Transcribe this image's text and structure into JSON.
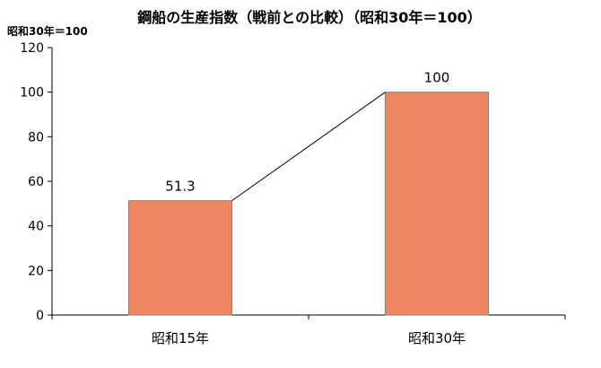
{
  "chart_data": {
    "type": "bar",
    "title": "鋼船の生産指数（戦前との比較）（昭和30年＝100）",
    "unit_label": "昭和30年＝100",
    "categories": [
      "昭和15年",
      "昭和30年"
    ],
    "values": [
      51.3,
      100
    ],
    "value_labels": [
      "51.3",
      "100"
    ],
    "ylim": [
      0,
      120
    ],
    "yticks": [
      "0",
      "20",
      "40",
      "60",
      "80",
      "100",
      "120"
    ],
    "grid": false,
    "legend": "none",
    "connector_line": true,
    "bar_color": "#EF8561",
    "bar_edge_color": "#7F7F7F"
  }
}
